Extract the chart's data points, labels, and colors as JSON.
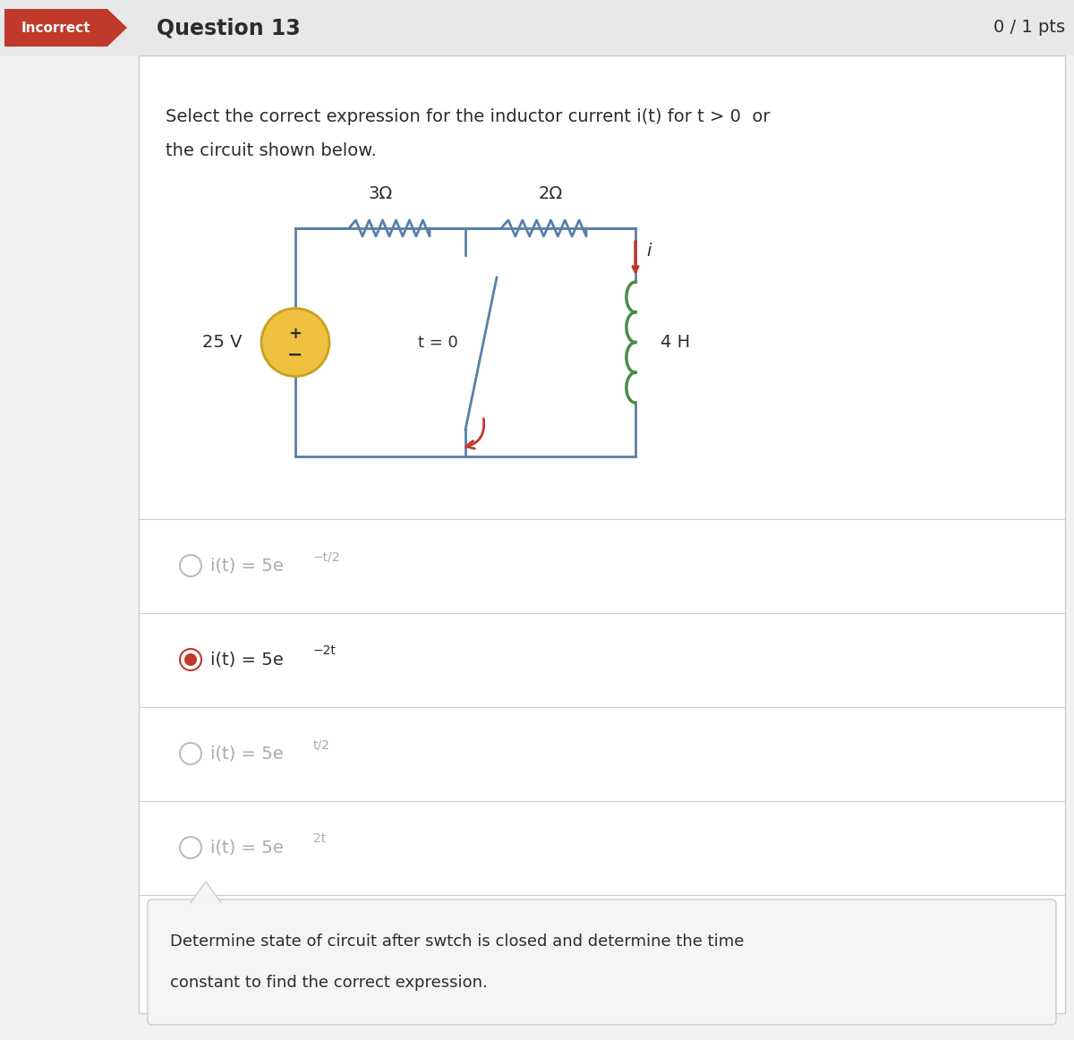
{
  "title": "Question 13",
  "pts": "0 / 1 pts",
  "incorrect_label": "Incorrect",
  "question_text_line1": "Select the correct expression for the inductor current i(t) for t > 0  or",
  "question_text_line2": "the circuit shown below.",
  "resistor1_label": "3Ω",
  "resistor2_label": "2Ω",
  "voltage_label": "25 V",
  "switch_label": "t = 0",
  "inductor_label": "4 H",
  "current_label": "i",
  "opt_bases": [
    "i(t) = 5e",
    "i(t) = 5e",
    "i(t) = 5e",
    "i(t) = 5e"
  ],
  "opt_sups": [
    "−t/2",
    "−2t",
    "t/2",
    "2t"
  ],
  "opt_selected": [
    false,
    true,
    false,
    false
  ],
  "feedback_text_line1": "Determine state of circuit after swtch is closed and determine the time",
  "feedback_text_line2": "constant to find the correct expression.",
  "bg_color": "#f2f2f2",
  "header_bg": "#e8e8e8",
  "incorrect_red": "#c0392b",
  "border_color": "#cccccc",
  "circuit_blue": "#5b7fa6",
  "circuit_green": "#4a8a4a",
  "circuit_red": "#c0392b",
  "voltage_src_fill": "#f0c040",
  "voltage_src_edge": "#c8a020",
  "text_dark": "#2c2c2c",
  "text_gray": "#aaaaaa",
  "feedback_bg": "#f5f5f5",
  "selected_color": "#c0392b",
  "unselected_color": "#bbbbbb",
  "white": "#ffffff"
}
